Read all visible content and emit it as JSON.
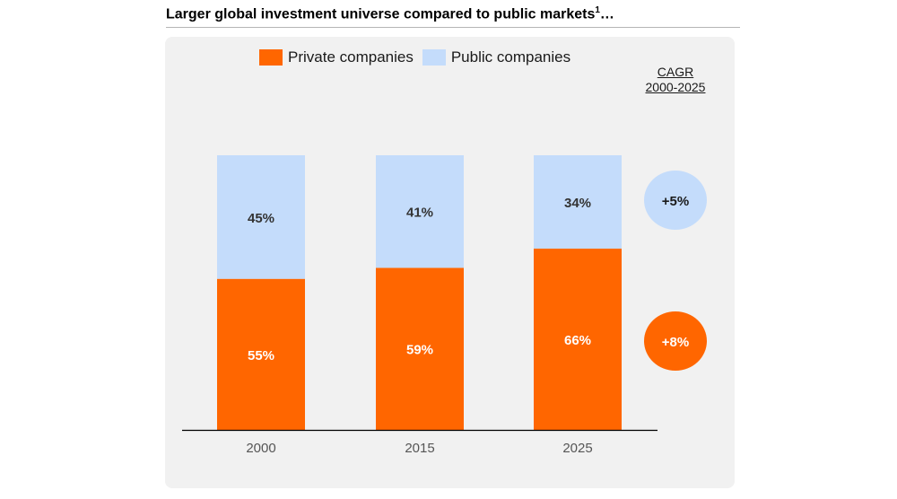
{
  "header": {
    "title": "Larger global investment universe compared to public markets",
    "title_sup": "1",
    "title_suffix": "…"
  },
  "legend": {
    "private_label": "Private companies",
    "public_label": "Public companies"
  },
  "cagr": {
    "label": "CAGR",
    "period": "2000-2025",
    "public": "+5%",
    "private": "+8%"
  },
  "colors": {
    "private": "#ff6600",
    "public": "#c4dcfb",
    "panel": "#f1f1f1"
  },
  "chart_data": {
    "type": "bar",
    "stacked": true,
    "percent": true,
    "categories": [
      "2000",
      "2015",
      "2025"
    ],
    "series": [
      {
        "name": "Private companies",
        "values": [
          55,
          59,
          66
        ],
        "labels": [
          "55%",
          "59%",
          "66%"
        ]
      },
      {
        "name": "Public companies",
        "values": [
          45,
          41,
          34
        ],
        "labels": [
          "45%",
          "41%",
          "34%"
        ]
      }
    ],
    "ylim": [
      0,
      100
    ],
    "grid": false,
    "legend_position": "top-center"
  }
}
